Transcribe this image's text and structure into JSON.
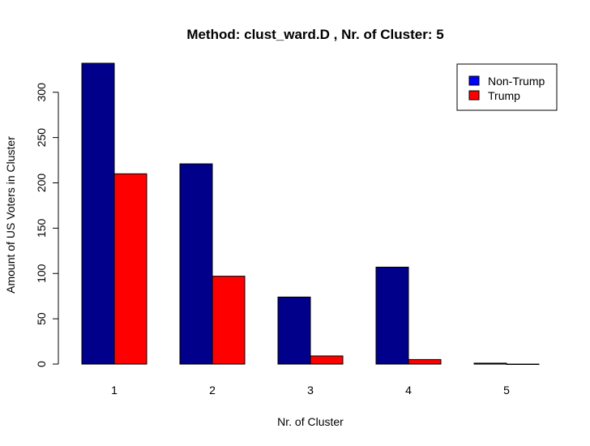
{
  "chart_data": {
    "type": "bar",
    "title": "Method: clust_ward.D , Nr. of Cluster: 5",
    "xlabel": "Nr. of Cluster",
    "ylabel": "Amount of US Voters in Cluster",
    "categories": [
      "1",
      "2",
      "3",
      "4",
      "5"
    ],
    "series": [
      {
        "name": "Non-Trump",
        "color": "#00008b",
        "values": [
          332,
          221,
          74,
          107,
          1
        ]
      },
      {
        "name": "Trump",
        "color": "#ff0000",
        "values": [
          210,
          97,
          9,
          5,
          0
        ]
      }
    ],
    "legend_colors": [
      "#0000ff",
      "#ff0000"
    ],
    "yticks": [
      0,
      50,
      100,
      150,
      200,
      250,
      300
    ],
    "ylim": [
      0,
      332
    ],
    "grid": false,
    "legend_position": "top-right"
  }
}
